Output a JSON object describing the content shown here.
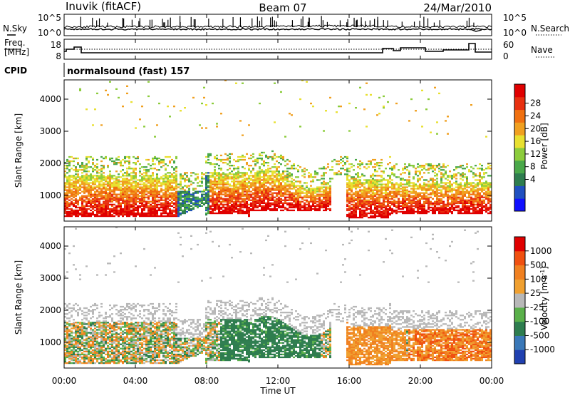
{
  "header": {
    "station": "Inuvik (fitACF)",
    "beam": "Beam 07",
    "date": "24/Mar/2010"
  },
  "noise_panel": {
    "left_label": "N.Sky",
    "right_label": "N.Search",
    "left_ticks": [
      "10^5",
      "10^0"
    ],
    "right_ticks": [
      "10^5",
      "10^0"
    ]
  },
  "freq_panel": {
    "left_label_1": "Freq.",
    "left_label_2": "[MHz]",
    "right_label": "Nave",
    "left_ticks": [
      "18",
      "8"
    ],
    "right_ticks": [
      "60",
      "0"
    ]
  },
  "cpid": {
    "label": "CPID",
    "value": "normalsound (fast) 157"
  },
  "chart_data": [
    {
      "type": "heatmap",
      "name": "power",
      "ylabel": "Slant Range [km]",
      "ylim": [
        200,
        4600
      ],
      "yticks": [
        "1000",
        "2000",
        "3000",
        "4000"
      ],
      "colorbar_label": "Power [dB]",
      "colorbar_ticks": [
        "28",
        "24",
        "20",
        "16",
        "12",
        "8",
        "4"
      ],
      "colorbar_colors": [
        "#1010ff",
        "#2050c0",
        "#2e7d4f",
        "#4aa84a",
        "#8ccc3c",
        "#e8e030",
        "#f0a020",
        "#f07010",
        "#e83010",
        "#e00000"
      ]
    },
    {
      "type": "heatmap",
      "name": "velocity",
      "ylabel": "Slant Range [km]",
      "ylim": [
        200,
        4600
      ],
      "yticks": [
        "1000",
        "2000",
        "3000",
        "4000"
      ],
      "colorbar_label": "Velocity [m s",
      "colorbar_label_sup": "-1",
      "colorbar_label_end": "]",
      "colorbar_ticks": [
        "1000",
        "500",
        "100",
        "25",
        "-25",
        "-100",
        "-500",
        "-1000"
      ],
      "colorbar_colors": [
        "#2040b0",
        "#3a78b8",
        "#2e7d4f",
        "#5ab04a",
        "#b8b8b8",
        "#f0a030",
        "#f08020",
        "#f05010",
        "#e00000"
      ]
    }
  ],
  "xaxis": {
    "label": "Time UT",
    "ticks": [
      "00:00",
      "04:00",
      "08:00",
      "12:00",
      "16:00",
      "20:00",
      "00:00"
    ]
  }
}
